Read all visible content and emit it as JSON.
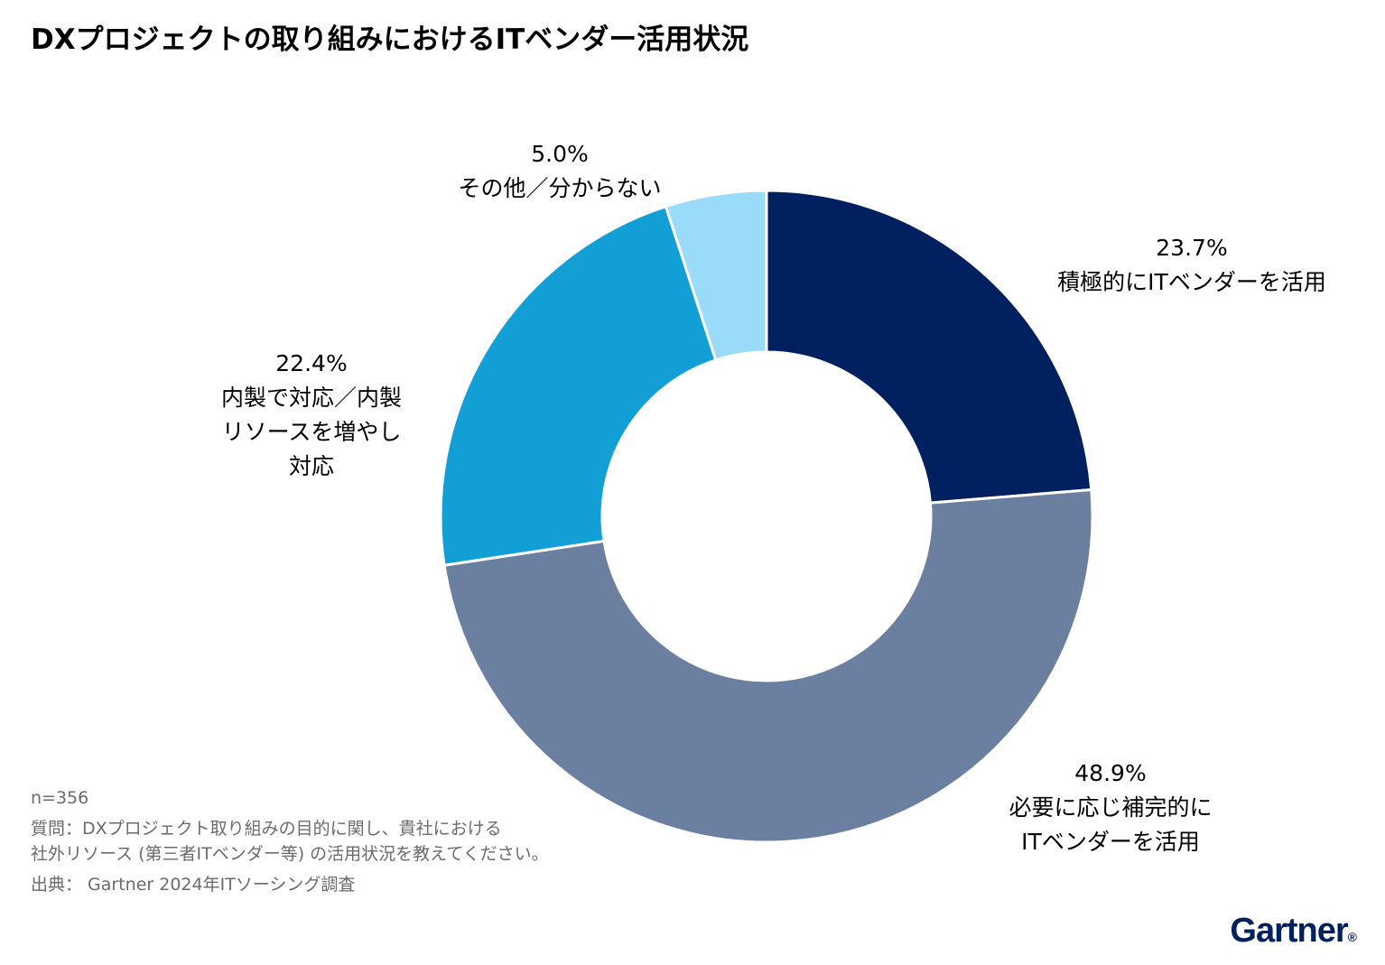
{
  "title": "DXプロジェクトの取り組みにおけるITベンダー活用状況",
  "chart_data": {
    "type": "pie",
    "donut": true,
    "slices": [
      {
        "value": 23.7,
        "value_label": "23.7%",
        "label_lines": [
          "積極的にITベンダーを活用"
        ],
        "color": "#002060"
      },
      {
        "value": 48.9,
        "value_label": "48.9%",
        "label_lines": [
          "必要に応じ補完的に",
          "ITベンダーを活用"
        ],
        "color": "#6b7fa0"
      },
      {
        "value": 22.4,
        "value_label": "22.4%",
        "label_lines": [
          "内製で対応／内製",
          "リソースを増やし",
          "対応"
        ],
        "color": "#119fd6"
      },
      {
        "value": 5.0,
        "value_label": "5.0%",
        "label_lines": [
          "その他／分からない"
        ],
        "color": "#99dbf8"
      }
    ]
  },
  "notes": {
    "n": "n=356",
    "question_1": "質問：DXプロジェクト取り組みの目的に関し、貴社における",
    "question_2": "社外リソース (第三者ITベンダー等) の活用状況を教えてください。",
    "source": "出典： Gartner 2024年ITソーシング調査"
  },
  "brand": {
    "name": "Gartner",
    "mark": "®"
  }
}
